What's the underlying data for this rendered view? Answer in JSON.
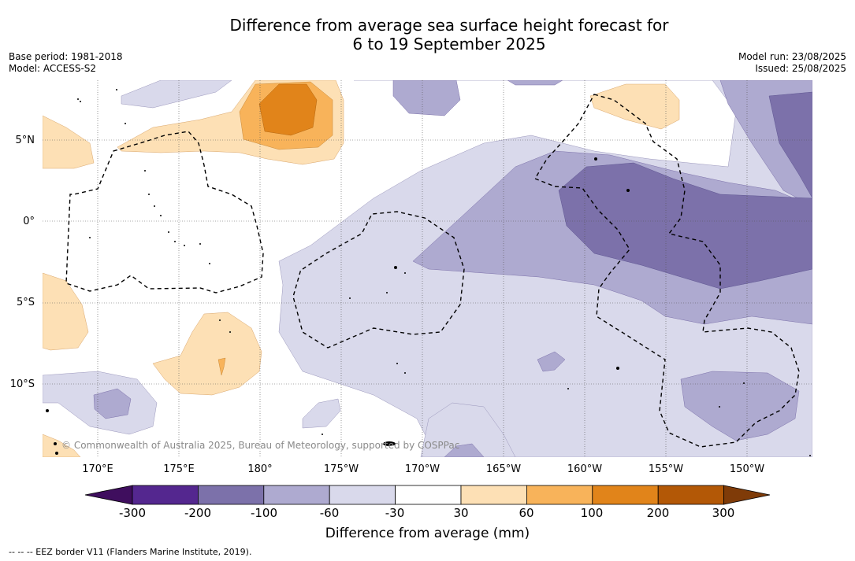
{
  "title_line1": "Difference from average sea surface height forecast for",
  "title_line2": "6 to 19 September 2025",
  "base_period": "Base period: 1981-2018",
  "model": "Model: ACCESS-S2",
  "model_run": "Model run: 23/08/2025",
  "issued": "Issued: 25/08/2025",
  "lat_labels": [
    "5°N",
    "0°",
    "5°S",
    "10°S"
  ],
  "lon_labels": [
    "170°E",
    "175°E",
    "180°",
    "175°W",
    "170°W",
    "165°W",
    "160°W",
    "155°W",
    "150°W"
  ],
  "copyright": "© Commonwealth of Australia 2025, Bureau of Meteorology, supported by COSPPac",
  "colorbar": {
    "ticks": [
      "-300",
      "-200",
      "-100",
      "-60",
      "-30",
      "30",
      "60",
      "100",
      "200",
      "300"
    ],
    "colors": [
      "#3f0e5e",
      "#54278f",
      "#7c71aa",
      "#aeaad0",
      "#d9d9eb",
      "#ffffff",
      "#fde0b5",
      "#f8b35a",
      "#e1841a",
      "#b35806",
      "#7f3b08"
    ],
    "label": "Difference from average (mm)"
  },
  "eez_note": "--  --  -- EEZ border V11 (Flanders Marine Institute, 2019)."
}
